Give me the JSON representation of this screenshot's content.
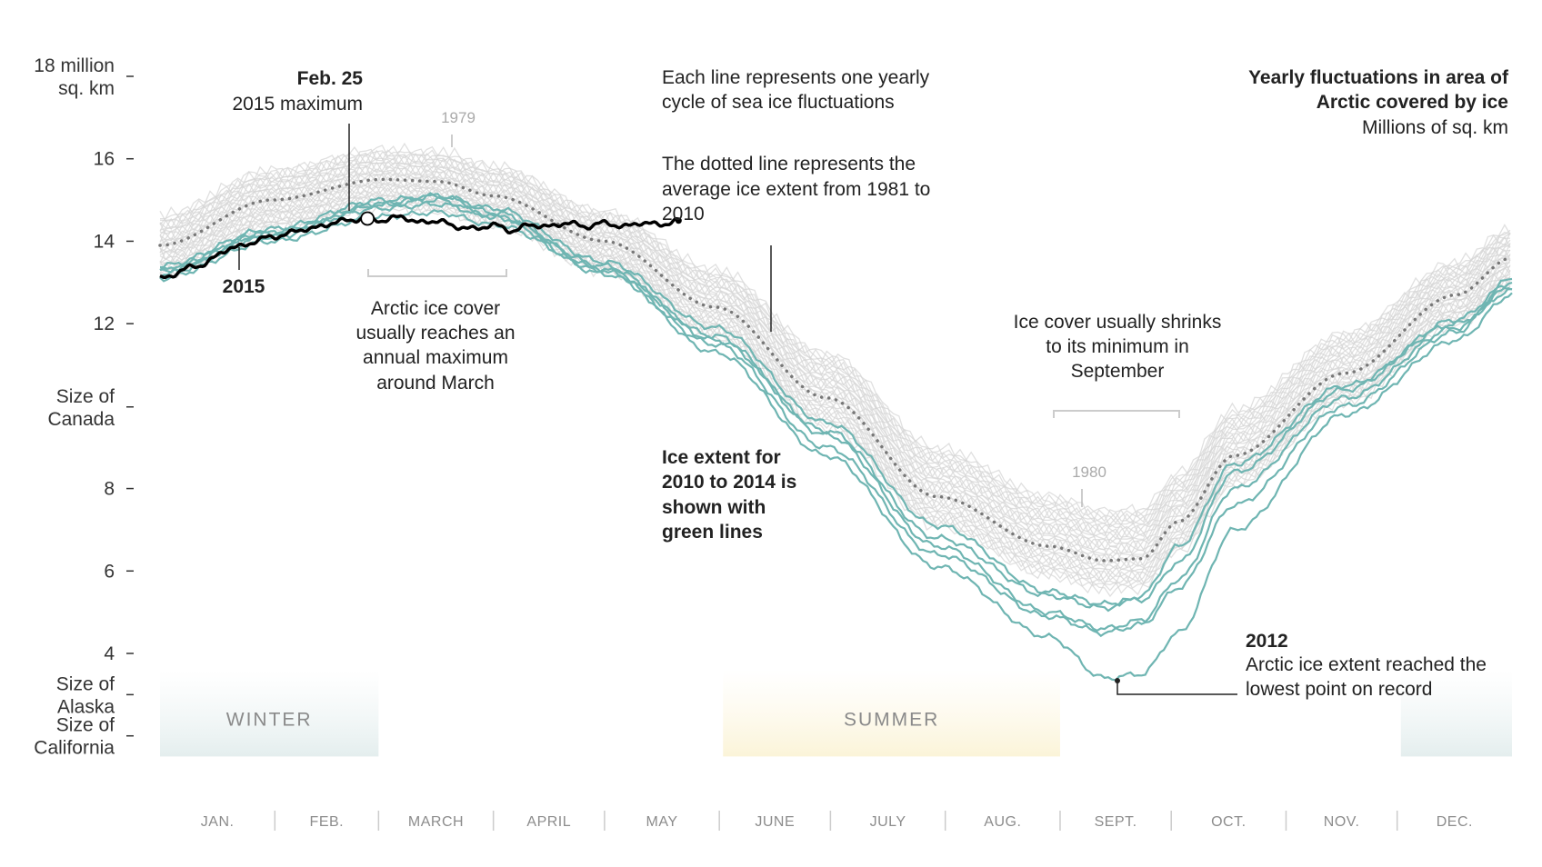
{
  "chart_data": {
    "type": "line",
    "title": "Yearly fluctuations in area of Arctic covered by ice",
    "subtitle": "Millions of sq. km",
    "ylim": [
      1.9,
      18.5
    ],
    "yticks": [
      {
        "value": 18,
        "label": [
          "18 million",
          "sq. km"
        ]
      },
      {
        "value": 16,
        "label": [
          "16"
        ]
      },
      {
        "value": 14,
        "label": [
          "14"
        ]
      },
      {
        "value": 12,
        "label": [
          "12"
        ]
      },
      {
        "value": 9.98,
        "label": [
          "Size of",
          "Canada"
        ]
      },
      {
        "value": 8,
        "label": [
          "8"
        ]
      },
      {
        "value": 6,
        "label": [
          "6"
        ]
      },
      {
        "value": 4,
        "label": [
          "4"
        ]
      },
      {
        "value": 3.0,
        "label": [
          "Size of",
          "Alaska"
        ]
      },
      {
        "value": 2.0,
        "label": [
          "Size of",
          "California"
        ]
      }
    ],
    "months": [
      "JAN.",
      "FEB.",
      "MARCH",
      "APRIL",
      "MAY",
      "JUNE",
      "JULY",
      "AUG.",
      "SEPT.",
      "OCT.",
      "NOV.",
      "DEC."
    ],
    "seasons": [
      {
        "name": "WINTER",
        "from_day": 0,
        "to_day": 59
      },
      {
        "name": "SUMMER",
        "from_day": 152,
        "to_day": 243
      },
      {
        "name": "",
        "from_day": 335,
        "to_day": 365
      }
    ],
    "colors": {
      "historical": "#d5d5d5",
      "recent": "#6fb5b2",
      "current": "#000000",
      "average": "#777777"
    },
    "historical_years": {
      "label_1979": "1979",
      "label_1980": "1980",
      "count": 31
    },
    "average_1981_2010": {
      "day": [
        0,
        30,
        60,
        75,
        90,
        120,
        150,
        180,
        210,
        240,
        255,
        265,
        275,
        290,
        320,
        350,
        365
      ],
      "value": [
        13.9,
        15.0,
        15.5,
        15.45,
        15.1,
        14.0,
        12.4,
        10.2,
        7.8,
        6.6,
        6.25,
        6.3,
        7.2,
        8.8,
        10.8,
        12.7,
        13.6
      ]
    },
    "recent_series": [
      {
        "day": [
          0,
          30,
          60,
          75,
          90,
          120,
          150,
          180,
          210,
          240,
          255,
          265,
          275,
          290,
          320,
          350,
          365
        ],
        "value": [
          13.3,
          14.2,
          14.8,
          14.9,
          14.6,
          13.4,
          11.6,
          9.4,
          6.8,
          5.4,
          5.1,
          5.4,
          6.6,
          8.6,
          10.5,
          12.0,
          12.8
        ]
      },
      {
        "day": [
          0,
          30,
          60,
          75,
          90,
          120,
          150,
          180,
          210,
          240,
          255,
          265,
          275,
          290,
          320,
          350,
          365
        ],
        "value": [
          13.4,
          14.3,
          15.0,
          15.1,
          14.7,
          13.3,
          11.3,
          8.8,
          6.1,
          4.4,
          3.4,
          3.5,
          4.5,
          7.0,
          9.8,
          11.6,
          12.7
        ]
      },
      {
        "day": [
          0,
          30,
          60,
          75,
          90,
          120,
          150,
          180,
          210,
          240,
          255,
          265,
          275,
          290,
          320,
          350,
          365
        ],
        "value": [
          13.2,
          14.1,
          14.9,
          15.1,
          14.8,
          13.5,
          11.9,
          9.6,
          7.1,
          5.5,
          5.2,
          5.3,
          6.2,
          8.4,
          10.4,
          12.1,
          13.0
        ]
      },
      {
        "day": [
          0,
          30,
          60,
          75,
          90,
          120,
          150,
          180,
          210,
          240,
          255,
          265,
          275,
          290,
          320,
          350,
          365
        ],
        "value": [
          13.1,
          14.0,
          14.6,
          14.7,
          14.4,
          13.3,
          11.7,
          9.3,
          6.6,
          5.0,
          4.6,
          4.8,
          5.8,
          8.0,
          10.2,
          11.9,
          12.9
        ]
      },
      {
        "day": [
          0,
          30,
          60,
          75,
          90,
          120,
          150,
          180,
          210,
          240,
          255,
          265,
          275,
          290,
          320,
          350,
          365
        ],
        "value": [
          13.3,
          14.2,
          14.9,
          15.0,
          14.6,
          13.2,
          11.5,
          9.0,
          6.4,
          4.9,
          4.5,
          4.7,
          5.6,
          7.6,
          10.0,
          11.8,
          13.1
        ]
      }
    ],
    "current_2015": {
      "name": "2015",
      "day": [
        0,
        10,
        20,
        30,
        40,
        50,
        56,
        60,
        65,
        70,
        75,
        80,
        85,
        90,
        95,
        100,
        105,
        110,
        115,
        120,
        125,
        130,
        135,
        140
      ],
      "value": [
        13.1,
        13.4,
        13.85,
        14.1,
        14.3,
        14.5,
        14.55,
        14.5,
        14.6,
        14.45,
        14.5,
        14.35,
        14.3,
        14.4,
        14.25,
        14.4,
        14.35,
        14.45,
        14.35,
        14.45,
        14.35,
        14.45,
        14.4,
        14.5
      ]
    },
    "annotations": {
      "max_2015": {
        "day": 56,
        "value": 14.55,
        "title": "Feb. 25",
        "text": "2015 maximum"
      },
      "min_2012": {
        "day": 259,
        "value": 3.4,
        "title": "2012",
        "lines": [
          "Arctic ice extent reached the",
          "lowest point on record"
        ]
      },
      "each_line": [
        "Each line represents one yearly",
        "cycle of sea ice fluctuations"
      ],
      "dotted_line": [
        "The dotted line represents the",
        "average ice extent from 1981 to",
        "2010"
      ],
      "march_max": [
        "Arctic ice cover",
        "usually reaches an",
        "annual maximum",
        "around March"
      ],
      "sept_min": [
        "Ice cover usually shrinks",
        "to its minimum in",
        "September"
      ],
      "green_lines": [
        "Ice extent for",
        "2010 to 2014 is",
        "shown with",
        "green lines"
      ]
    }
  }
}
